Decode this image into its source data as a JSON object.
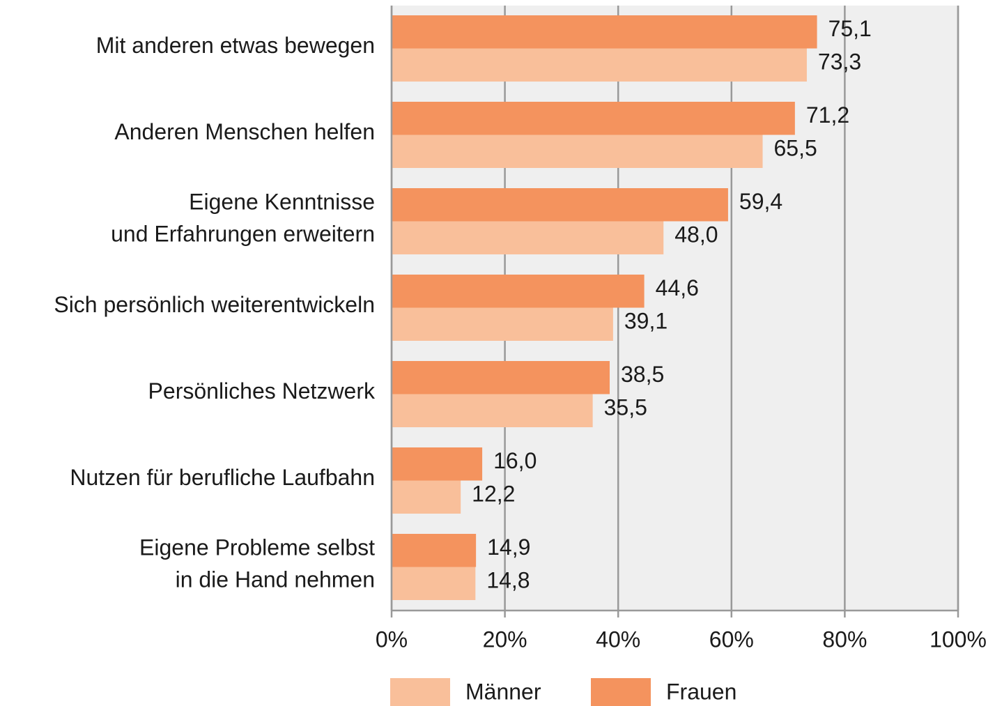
{
  "chart_data": {
    "type": "bar",
    "orientation": "horizontal",
    "categories": [
      "Mit anderen etwas bewegen",
      "Anderen Menschen helfen",
      "Eigene Kenntnisse\nund Erfahrungen erweitern",
      "Sich persönlich weiterentwickeln",
      "Persönliches Netzwerk",
      "Nutzen für berufliche Laufbahn",
      "Eigene Probleme selbst\nin die Hand nehmen"
    ],
    "series": [
      {
        "name": "Männer",
        "color": "#f9bf9a",
        "values": [
          73.3,
          65.5,
          48.0,
          39.1,
          35.5,
          12.2,
          14.8
        ],
        "value_labels": [
          "73,3",
          "65,5",
          "48,0",
          "39,1",
          "35,5",
          "12,2",
          "14,8"
        ]
      },
      {
        "name": "Frauen",
        "color": "#f4935e",
        "values": [
          75.1,
          71.2,
          59.4,
          44.6,
          38.5,
          16.0,
          14.9
        ],
        "value_labels": [
          "75,1",
          "71,2",
          "59,4",
          "44,6",
          "38,5",
          "16,0",
          "14,9"
        ]
      }
    ],
    "xlim": [
      0,
      100
    ],
    "xticks": [
      {
        "value": 0,
        "label": "0%"
      },
      {
        "value": 20,
        "label": "20%"
      },
      {
        "value": 40,
        "label": "40%"
      },
      {
        "value": 60,
        "label": "60%"
      },
      {
        "value": 80,
        "label": "80%"
      },
      {
        "value": 100,
        "label": "100%"
      }
    ],
    "grid": true,
    "legend": "bottom"
  }
}
